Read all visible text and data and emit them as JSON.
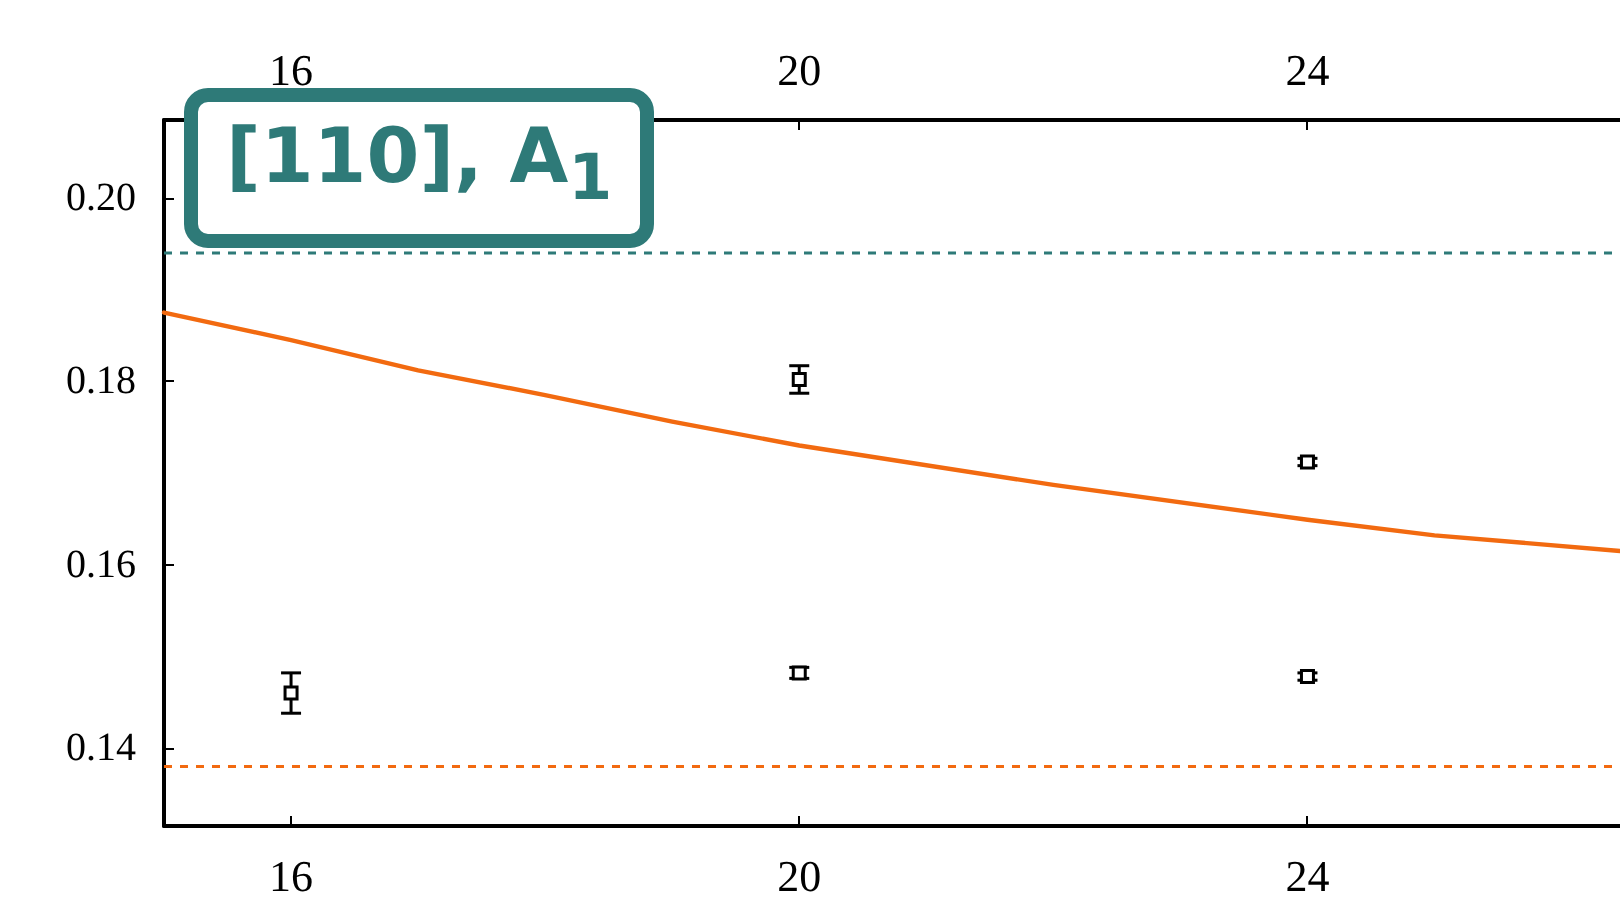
{
  "chart_data": {
    "type": "scatter",
    "xlim": [
      15,
      26.46
    ],
    "xticks": [
      16,
      20,
      24
    ],
    "x2lim": [
      15,
      26.46
    ],
    "x2ticks": [
      16,
      20,
      24
    ],
    "ylim": [
      0.1315,
      0.2085
    ],
    "yticks": [
      0.14,
      0.16,
      0.18,
      {
        "value": 0.2,
        "label": "0.20"
      }
    ],
    "grid": false,
    "annotations": [
      "[110], A$_{1}$"
    ],
    "series": [
      {
        "color": "#000000",
        "marker": "square",
        "x": [
          20,
          24
        ],
        "values": [
          0.1802,
          0.1712
        ],
        "errors": [
          0.0015,
          0.0004
        ]
      },
      {
        "color": "#000000",
        "marker": "square",
        "x": [
          16,
          20,
          24
        ],
        "values": [
          0.146,
          0.1482,
          0.1478
        ],
        "errors": [
          0.0022,
          0.0006,
          0.0004
        ]
      },
      {
        "type": "line",
        "color": "#f26a10",
        "x": [
          15,
          16,
          17,
          18,
          19,
          20,
          22,
          24,
          25,
          26.46
        ],
        "values": [
          0.1875,
          0.1845,
          0.1812,
          0.1785,
          0.1756,
          0.173,
          0.1687,
          0.1649,
          0.1632,
          0.1615
        ]
      }
    ],
    "ref_lines": [
      {
        "axis": "y",
        "value": 0.194,
        "color": "#2e7a78",
        "line_style": "dashed"
      },
      {
        "axis": "y",
        "value": 0.138,
        "color": "#f26a10",
        "line_style": "dashed"
      }
    ]
  }
}
